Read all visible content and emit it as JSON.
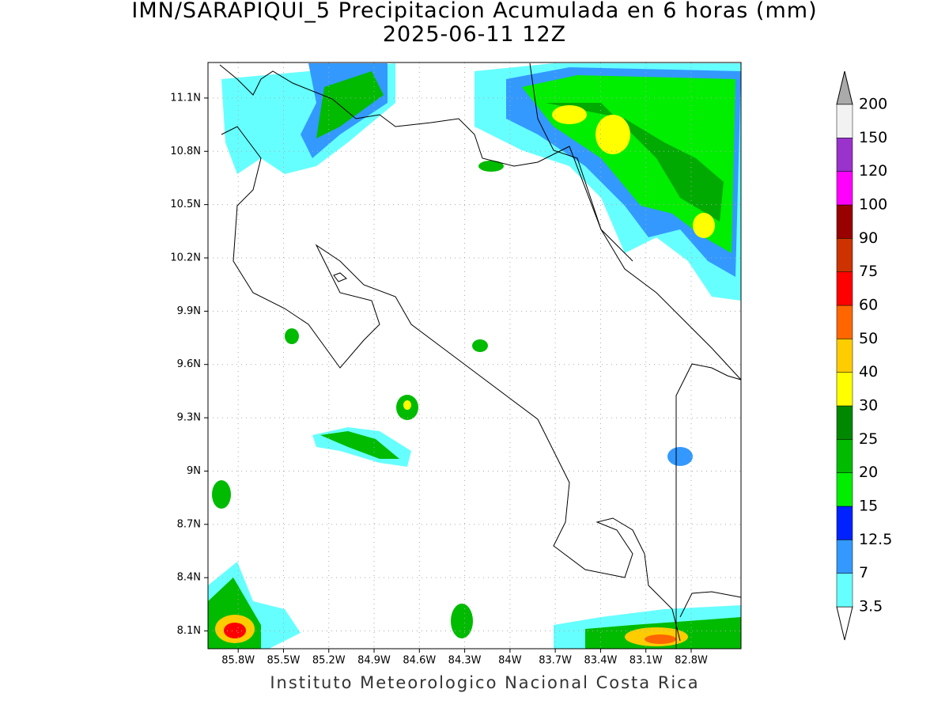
{
  "title": "IMN/SARAPIQUI_5 Precipitacion Acumulada en 6 horas (mm)",
  "subtitle": "2025-06-11 12Z",
  "footer": "Instituto Meteorologico Nacional Costa Rica",
  "map": {
    "xlim": [
      -86.0,
      -82.47
    ],
    "ylim": [
      8.0,
      11.3
    ],
    "xticks": [
      {
        "value": -85.8,
        "label": "85.8W"
      },
      {
        "value": -85.5,
        "label": "85.5W"
      },
      {
        "value": -85.2,
        "label": "85.2W"
      },
      {
        "value": -84.9,
        "label": "84.9W"
      },
      {
        "value": -84.6,
        "label": "84.6W"
      },
      {
        "value": -84.3,
        "label": "84.3W"
      },
      {
        "value": -84.0,
        "label": "84W"
      },
      {
        "value": -83.7,
        "label": "83.7W"
      },
      {
        "value": -83.4,
        "label": "83.4W"
      },
      {
        "value": -83.1,
        "label": "83.1W"
      },
      {
        "value": -82.8,
        "label": "82.8W"
      }
    ],
    "yticks": [
      {
        "value": 8.1,
        "label": "8.1N"
      },
      {
        "value": 8.4,
        "label": "8.4N"
      },
      {
        "value": 8.7,
        "label": "8.7N"
      },
      {
        "value": 9.0,
        "label": "9N"
      },
      {
        "value": 9.3,
        "label": "9.3N"
      },
      {
        "value": 9.6,
        "label": "9.6N"
      },
      {
        "value": 9.9,
        "label": "9.9N"
      },
      {
        "value": 10.2,
        "label": "10.2N"
      },
      {
        "value": 10.5,
        "label": "10.5N"
      },
      {
        "value": 10.8,
        "label": "10.8N"
      },
      {
        "value": 11.1,
        "label": "11.1N"
      }
    ],
    "grid": true
  },
  "colorbar": {
    "levels": [
      3.5,
      7,
      12.5,
      15,
      20,
      25,
      30,
      40,
      50,
      60,
      75,
      90,
      100,
      120,
      150,
      200
    ],
    "colors": [
      "#66ffff",
      "#3399ff",
      "#0022ff",
      "#00ee00",
      "#00bb00",
      "#008800",
      "#ffff00",
      "#ffcc00",
      "#ff6600",
      "#ff0000",
      "#cc3300",
      "#990000",
      "#ff00ff",
      "#9933cc",
      "#f2f2f2"
    ],
    "under_color": "#ffffff",
    "over_color": "#aaaaaa"
  }
}
